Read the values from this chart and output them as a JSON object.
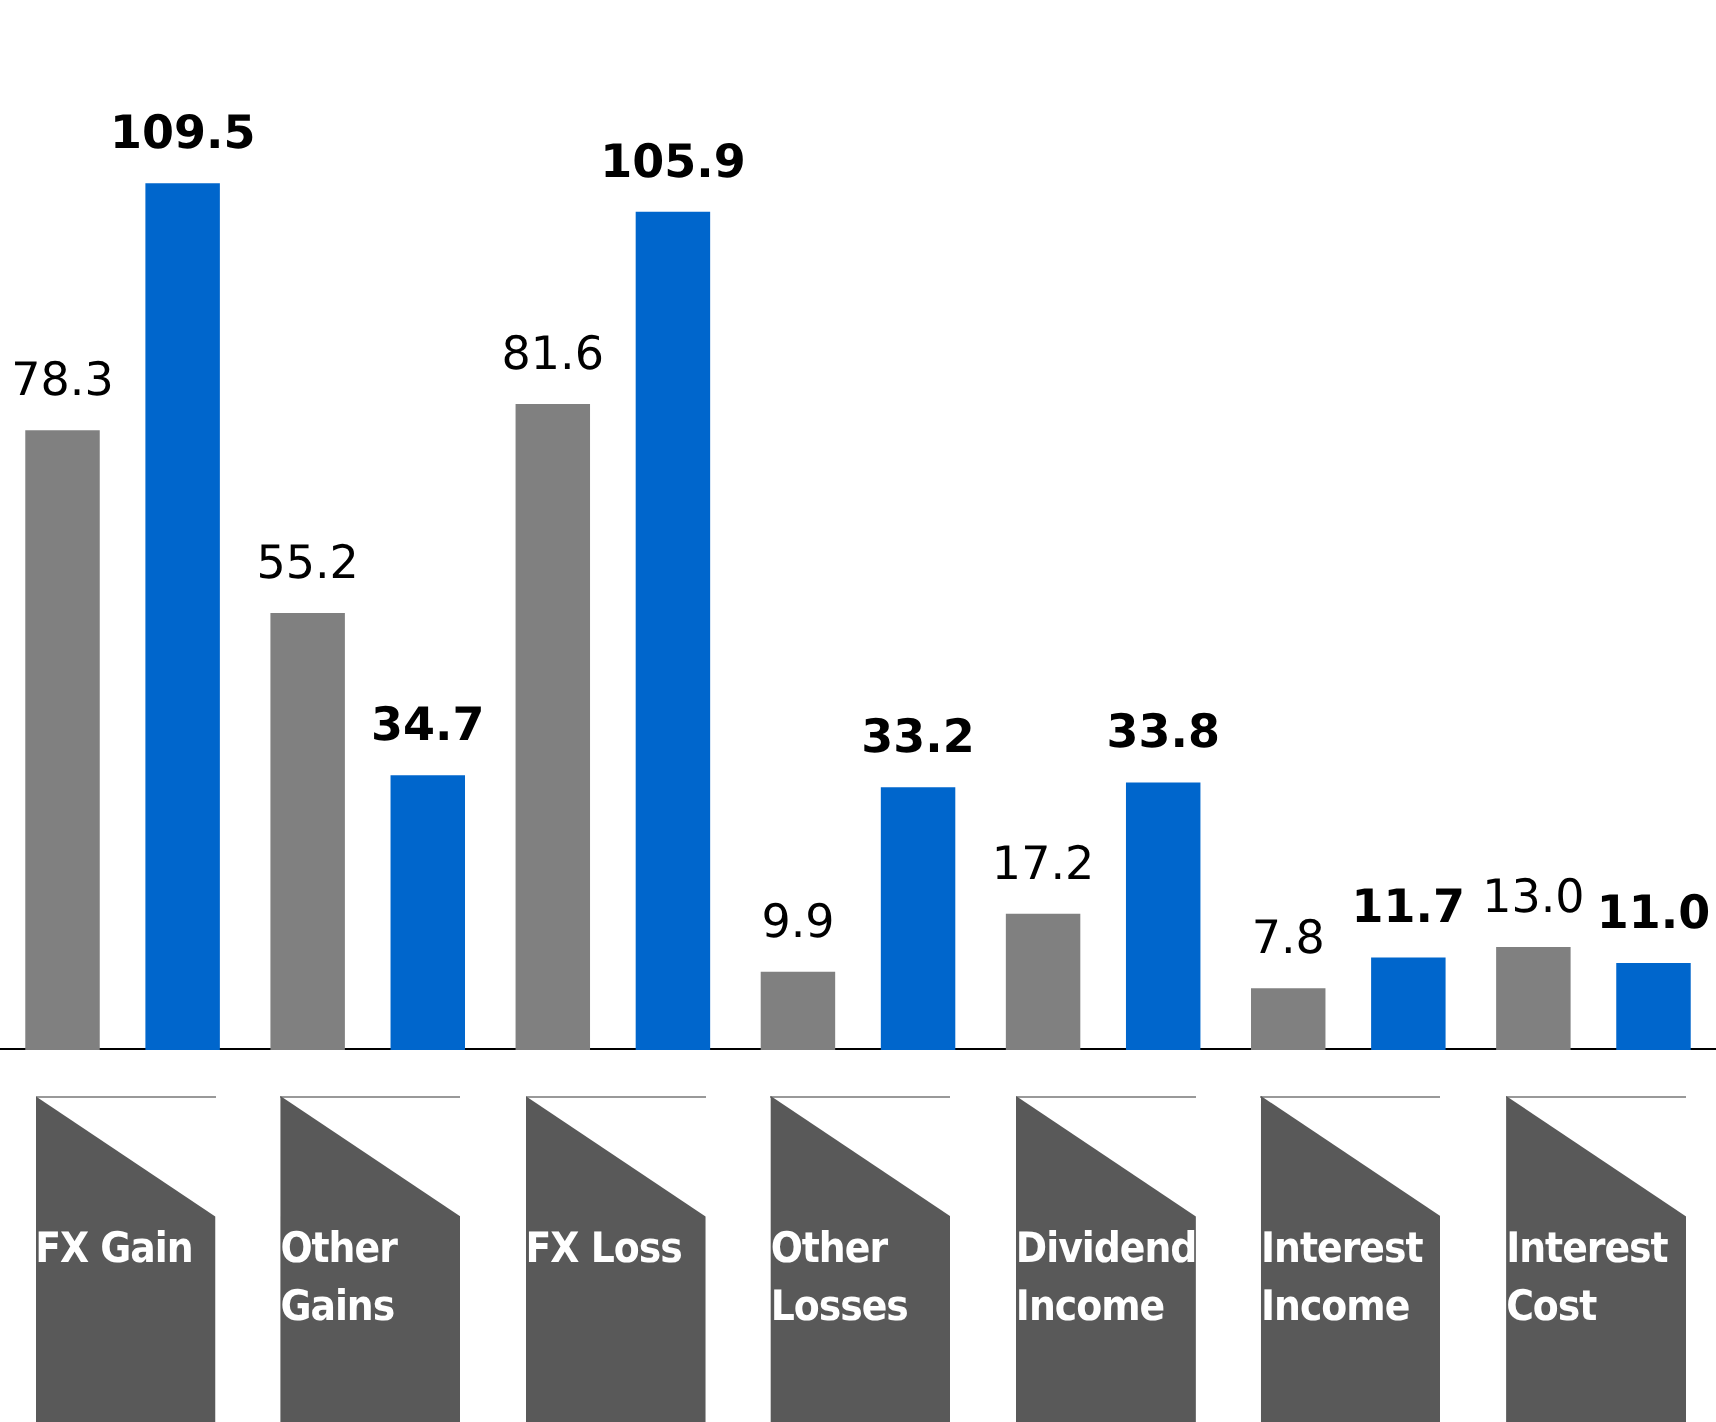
{
  "chart_data": {
    "type": "bar",
    "categories": [
      "FX Gain",
      "Other Gains",
      "FX Loss",
      "Other Losses",
      "Dividend Income",
      "Interest Income",
      "Interest Cost"
    ],
    "series": [
      {
        "color": "#808080",
        "values": [
          78.3,
          55.2,
          81.6,
          9.9,
          17.2,
          7.8,
          13.0
        ],
        "value_labels": [
          "78.3",
          "55.2",
          "81.6",
          "9.9",
          "17.2",
          "7.8",
          "13.0"
        ]
      },
      {
        "color": "#0066cc",
        "values": [
          109.5,
          34.7,
          105.9,
          33.2,
          33.8,
          11.7,
          11.0
        ],
        "value_labels": [
          "109.5",
          "34.7",
          "105.9",
          "33.2",
          "33.8",
          "11.7",
          "11.0"
        ]
      }
    ],
    "legend": false,
    "grid": false
  }
}
